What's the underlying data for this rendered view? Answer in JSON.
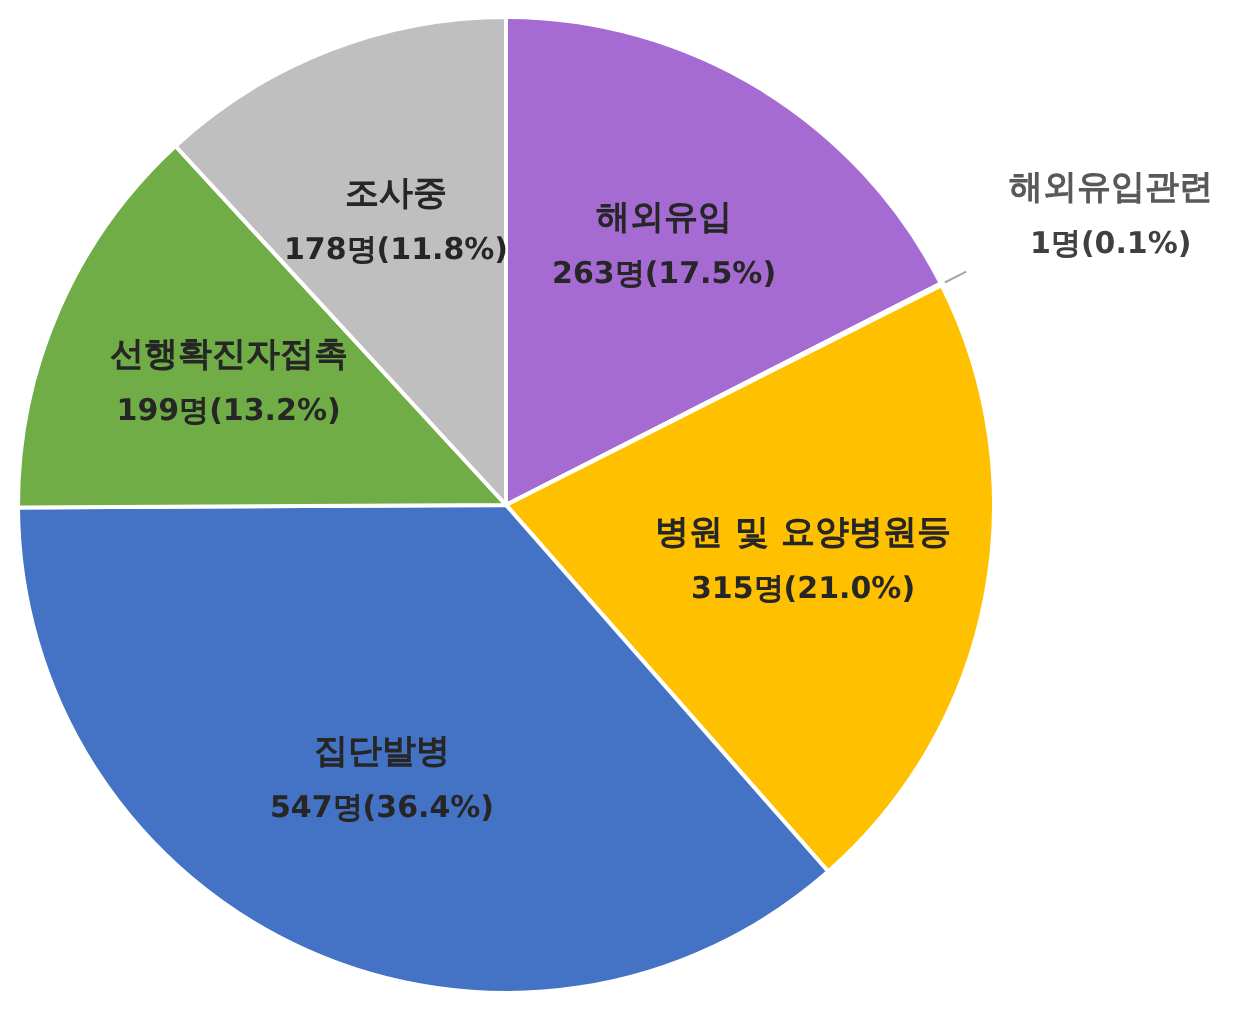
{
  "chart_data": {
    "type": "pie",
    "categories": [
      "해외유입",
      "해외유입관련",
      "병원 및 요양병원등",
      "집단발병",
      "선행확진자접촉",
      "조사중"
    ],
    "values": [
      263,
      1,
      315,
      547,
      199,
      178
    ],
    "value_labels": [
      "263명(17.5%)",
      "1명(0.1%)",
      "315명(21.0%)",
      "547명(36.4%)",
      "199명(13.2%)",
      "178명(11.8%)"
    ],
    "colors": [
      "#a66bd3",
      "#d9d9d9",
      "#ffc000",
      "#4472c4",
      "#70ad47",
      "#bfbfbf"
    ],
    "legend": false
  }
}
